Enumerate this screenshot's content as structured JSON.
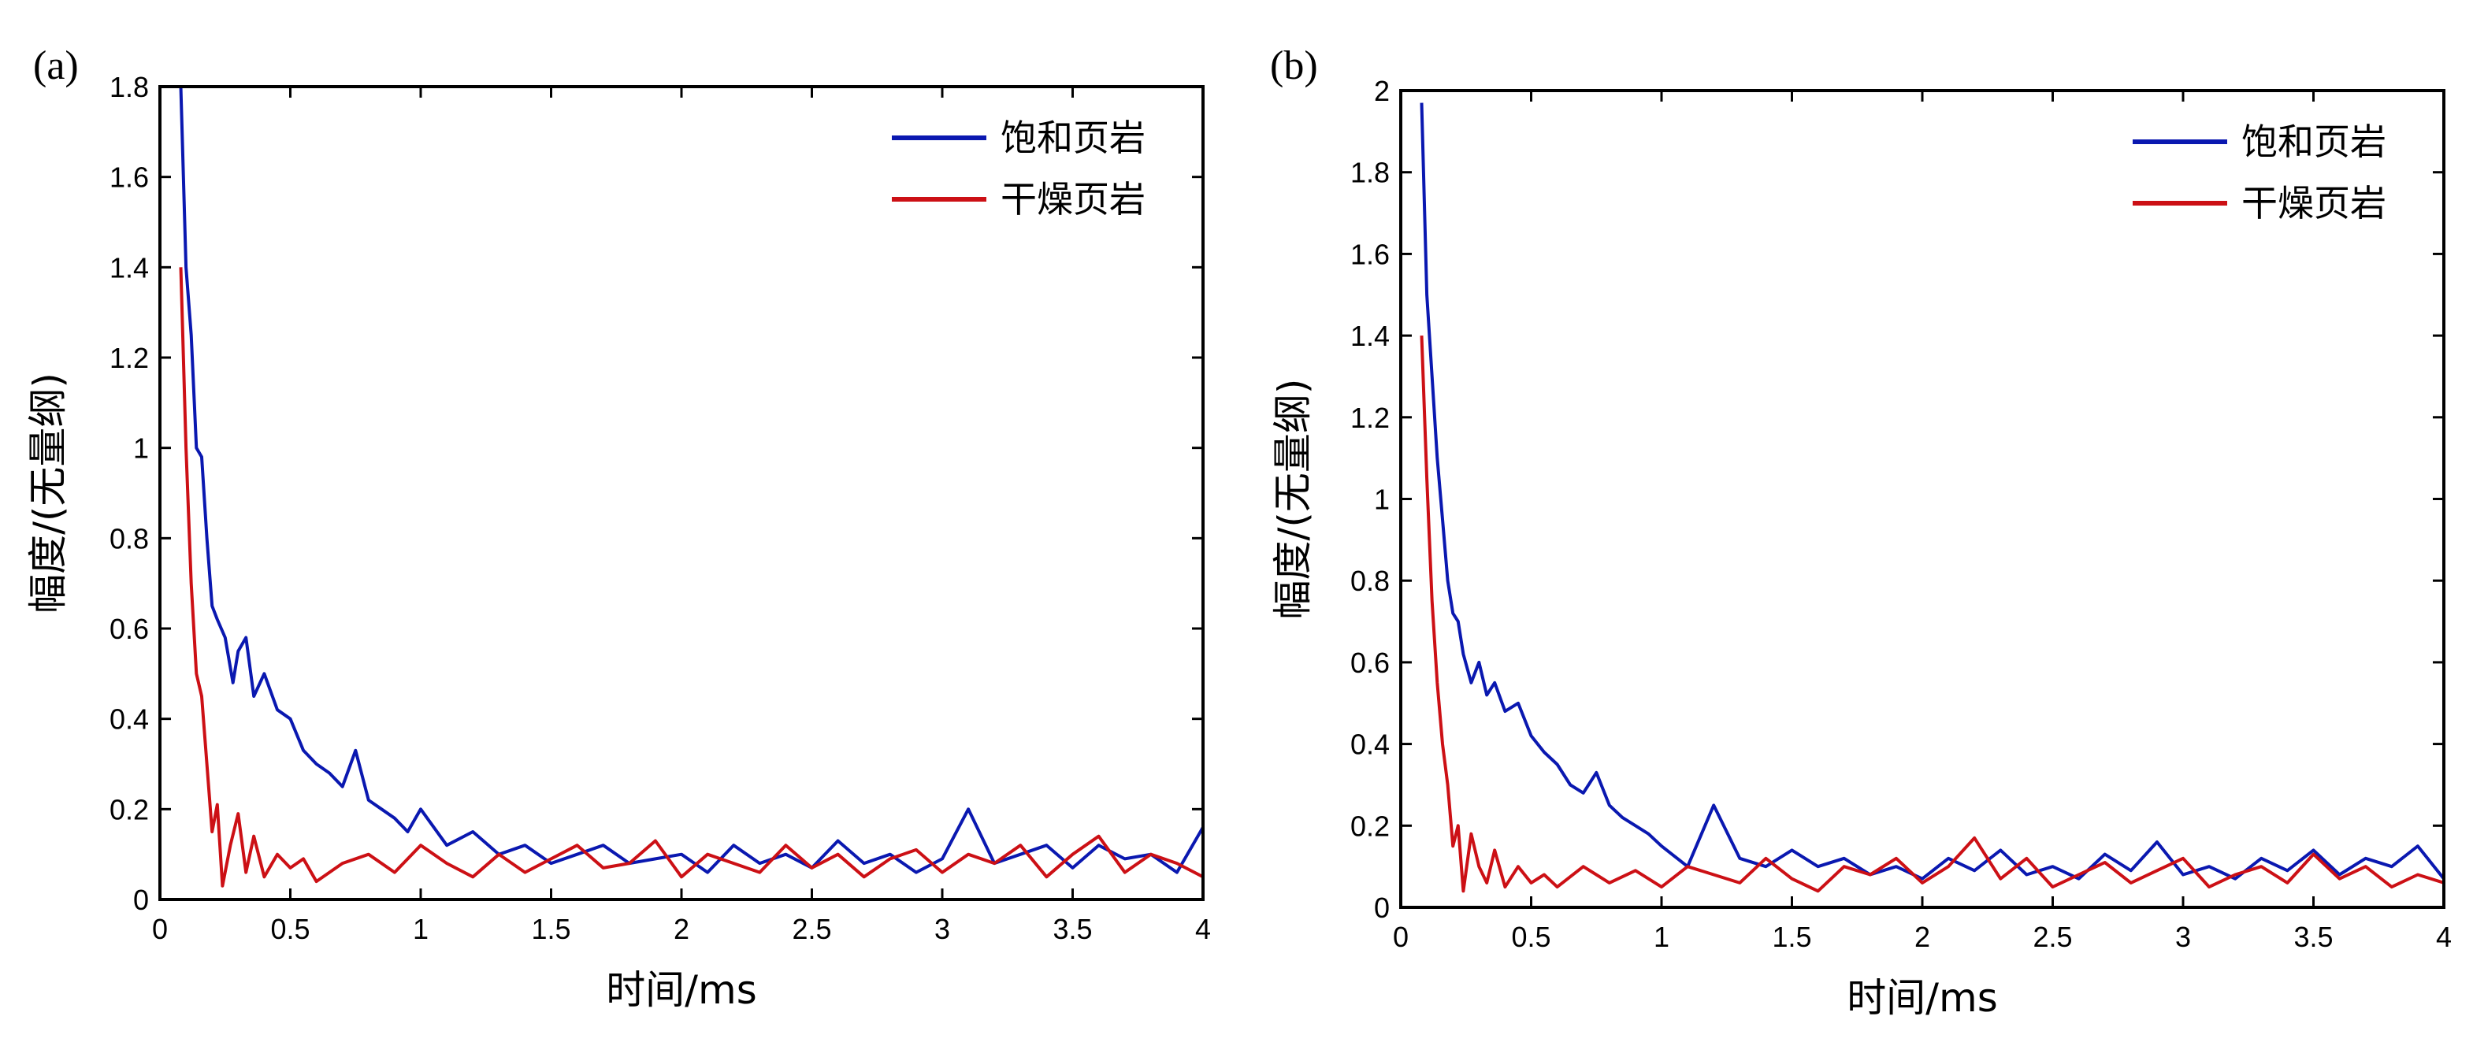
{
  "chart_data": [
    {
      "type": "line",
      "panel_label": "(a)",
      "xlabel": "时间/ms",
      "ylabel": "幅度/(无量纲)",
      "xlim": [
        0,
        4
      ],
      "ylim": [
        0,
        1.8
      ],
      "xticks": [
        "0",
        "0.5",
        "1",
        "1.5",
        "2",
        "2.5",
        "3",
        "3.5",
        "4"
      ],
      "xtick_values": [
        0,
        0.5,
        1,
        1.5,
        2,
        2.5,
        3,
        3.5,
        4
      ],
      "yticks": [
        "0",
        "0.2",
        "0.4",
        "0.6",
        "0.8",
        "1",
        "1.2",
        "1.4",
        "1.6",
        "1.8"
      ],
      "ytick_values": [
        0,
        0.2,
        0.4,
        0.6,
        0.8,
        1,
        1.2,
        1.4,
        1.6,
        1.8
      ],
      "grid": false,
      "legend_position": "top-right",
      "series": [
        {
          "name": "饱和页岩",
          "color": "#0a18b0",
          "x": [
            0.08,
            0.1,
            0.12,
            0.14,
            0.16,
            0.18,
            0.2,
            0.22,
            0.25,
            0.28,
            0.3,
            0.33,
            0.36,
            0.4,
            0.45,
            0.5,
            0.55,
            0.6,
            0.65,
            0.7,
            0.75,
            0.8,
            0.85,
            0.9,
            0.95,
            1.0,
            1.1,
            1.2,
            1.3,
            1.4,
            1.5,
            1.6,
            1.7,
            1.8,
            1.9,
            2.0,
            2.1,
            2.2,
            2.3,
            2.4,
            2.5,
            2.6,
            2.7,
            2.8,
            2.9,
            3.0,
            3.1,
            3.2,
            3.3,
            3.4,
            3.5,
            3.6,
            3.7,
            3.8,
            3.9,
            4.0
          ],
          "y": [
            1.8,
            1.4,
            1.25,
            1.0,
            0.98,
            0.8,
            0.65,
            0.62,
            0.58,
            0.48,
            0.55,
            0.58,
            0.45,
            0.5,
            0.42,
            0.4,
            0.33,
            0.3,
            0.28,
            0.25,
            0.33,
            0.22,
            0.2,
            0.18,
            0.15,
            0.2,
            0.12,
            0.15,
            0.1,
            0.12,
            0.08,
            0.1,
            0.12,
            0.08,
            0.09,
            0.1,
            0.06,
            0.12,
            0.08,
            0.1,
            0.07,
            0.13,
            0.08,
            0.1,
            0.06,
            0.09,
            0.2,
            0.08,
            0.1,
            0.12,
            0.07,
            0.12,
            0.09,
            0.1,
            0.06,
            0.16
          ]
        },
        {
          "name": "干燥页岩",
          "color": "#cc1015",
          "x": [
            0.08,
            0.1,
            0.12,
            0.14,
            0.16,
            0.18,
            0.2,
            0.22,
            0.24,
            0.27,
            0.3,
            0.33,
            0.36,
            0.4,
            0.45,
            0.5,
            0.55,
            0.6,
            0.7,
            0.8,
            0.9,
            1.0,
            1.1,
            1.2,
            1.3,
            1.4,
            1.5,
            1.6,
            1.7,
            1.8,
            1.9,
            2.0,
            2.1,
            2.2,
            2.3,
            2.4,
            2.5,
            2.6,
            2.7,
            2.8,
            2.9,
            3.0,
            3.1,
            3.2,
            3.3,
            3.4,
            3.5,
            3.6,
            3.7,
            3.8,
            3.9,
            4.0
          ],
          "y": [
            1.4,
            1.0,
            0.7,
            0.5,
            0.45,
            0.3,
            0.15,
            0.21,
            0.03,
            0.12,
            0.19,
            0.06,
            0.14,
            0.05,
            0.1,
            0.07,
            0.09,
            0.04,
            0.08,
            0.1,
            0.06,
            0.12,
            0.08,
            0.05,
            0.1,
            0.06,
            0.09,
            0.12,
            0.07,
            0.08,
            0.13,
            0.05,
            0.1,
            0.08,
            0.06,
            0.12,
            0.07,
            0.1,
            0.05,
            0.09,
            0.11,
            0.06,
            0.1,
            0.08,
            0.12,
            0.05,
            0.1,
            0.14,
            0.06,
            0.1,
            0.08,
            0.05
          ]
        }
      ]
    },
    {
      "type": "line",
      "panel_label": "(b)",
      "xlabel": "时间/ms",
      "ylabel": "幅度/(无量纲)",
      "xlim": [
        0,
        4
      ],
      "ylim": [
        0,
        2
      ],
      "xticks": [
        "0",
        "0.5",
        "1",
        "1.5",
        "2",
        "2.5",
        "3",
        "3.5",
        "4"
      ],
      "xtick_values": [
        0,
        0.5,
        1,
        1.5,
        2,
        2.5,
        3,
        3.5,
        4
      ],
      "yticks": [
        "0",
        "0.2",
        "0.4",
        "0.6",
        "0.8",
        "1",
        "1.2",
        "1.4",
        "1.6",
        "1.8",
        "2"
      ],
      "ytick_values": [
        0,
        0.2,
        0.4,
        0.6,
        0.8,
        1,
        1.2,
        1.4,
        1.6,
        1.8,
        2
      ],
      "grid": false,
      "legend_position": "top-right",
      "series": [
        {
          "name": "饱和页岩",
          "color": "#0a18b0",
          "x": [
            0.08,
            0.1,
            0.12,
            0.14,
            0.16,
            0.18,
            0.2,
            0.22,
            0.24,
            0.27,
            0.3,
            0.33,
            0.36,
            0.4,
            0.45,
            0.5,
            0.55,
            0.6,
            0.65,
            0.7,
            0.75,
            0.8,
            0.85,
            0.9,
            0.95,
            1.0,
            1.1,
            1.2,
            1.3,
            1.4,
            1.5,
            1.6,
            1.7,
            1.8,
            1.9,
            2.0,
            2.1,
            2.2,
            2.3,
            2.4,
            2.5,
            2.6,
            2.7,
            2.8,
            2.9,
            3.0,
            3.1,
            3.2,
            3.3,
            3.4,
            3.5,
            3.6,
            3.7,
            3.8,
            3.9,
            4.0
          ],
          "y": [
            1.97,
            1.5,
            1.3,
            1.1,
            0.95,
            0.8,
            0.72,
            0.7,
            0.62,
            0.55,
            0.6,
            0.52,
            0.55,
            0.48,
            0.5,
            0.42,
            0.38,
            0.35,
            0.3,
            0.28,
            0.33,
            0.25,
            0.22,
            0.2,
            0.18,
            0.15,
            0.1,
            0.25,
            0.12,
            0.1,
            0.14,
            0.1,
            0.12,
            0.08,
            0.1,
            0.07,
            0.12,
            0.09,
            0.14,
            0.08,
            0.1,
            0.07,
            0.13,
            0.09,
            0.16,
            0.08,
            0.1,
            0.07,
            0.12,
            0.09,
            0.14,
            0.08,
            0.12,
            0.1,
            0.15,
            0.07
          ]
        },
        {
          "name": "干燥页岩",
          "color": "#cc1015",
          "x": [
            0.08,
            0.1,
            0.12,
            0.14,
            0.16,
            0.18,
            0.2,
            0.22,
            0.24,
            0.27,
            0.3,
            0.33,
            0.36,
            0.4,
            0.45,
            0.5,
            0.55,
            0.6,
            0.7,
            0.8,
            0.9,
            1.0,
            1.1,
            1.2,
            1.3,
            1.4,
            1.5,
            1.6,
            1.7,
            1.8,
            1.9,
            2.0,
            2.1,
            2.2,
            2.3,
            2.4,
            2.5,
            2.6,
            2.7,
            2.8,
            2.9,
            3.0,
            3.1,
            3.2,
            3.3,
            3.4,
            3.5,
            3.6,
            3.7,
            3.8,
            3.9,
            4.0
          ],
          "y": [
            1.4,
            1.05,
            0.75,
            0.55,
            0.4,
            0.3,
            0.15,
            0.2,
            0.04,
            0.18,
            0.1,
            0.06,
            0.14,
            0.05,
            0.1,
            0.06,
            0.08,
            0.05,
            0.1,
            0.06,
            0.09,
            0.05,
            0.1,
            0.08,
            0.06,
            0.12,
            0.07,
            0.04,
            0.1,
            0.08,
            0.12,
            0.06,
            0.1,
            0.17,
            0.07,
            0.12,
            0.05,
            0.08,
            0.11,
            0.06,
            0.09,
            0.12,
            0.05,
            0.08,
            0.1,
            0.06,
            0.13,
            0.07,
            0.1,
            0.05,
            0.08,
            0.06
          ]
        }
      ]
    }
  ]
}
